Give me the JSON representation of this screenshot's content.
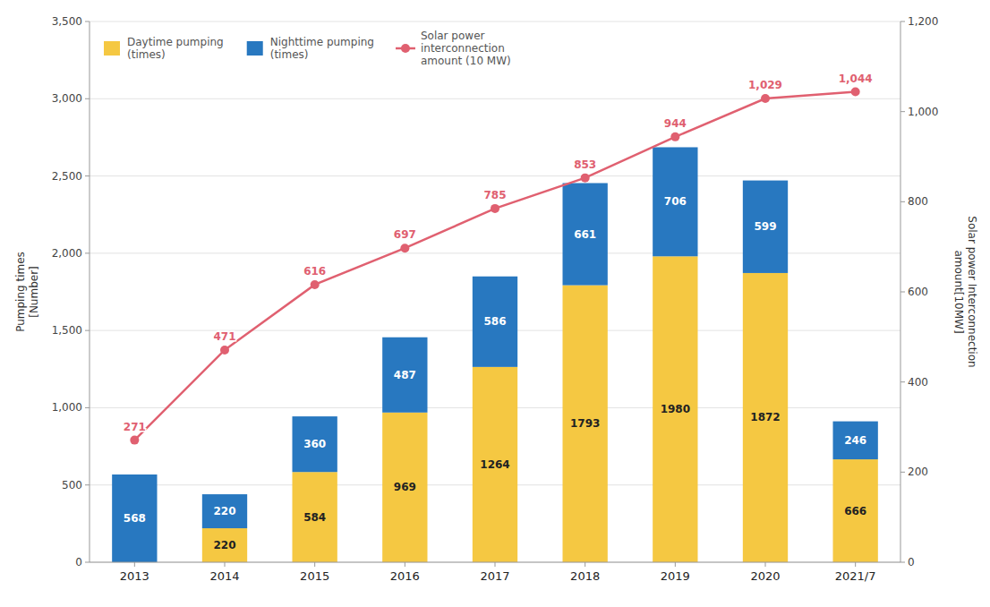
{
  "chart_data": {
    "type": "bar",
    "stacked": true,
    "categories": [
      "2013",
      "2014",
      "2015",
      "2016",
      "2017",
      "2018",
      "2019",
      "2020",
      "2021/7"
    ],
    "series": [
      {
        "name": "Daytime pumping\n(times)",
        "type": "bar",
        "color": "#F5C842",
        "values": [
          0,
          220,
          584,
          969,
          1264,
          1793,
          1980,
          1872,
          666
        ]
      },
      {
        "name": "Nighttime pumping\n(times)",
        "type": "bar",
        "color": "#2878C0",
        "values": [
          568,
          220,
          360,
          487,
          586,
          661,
          706,
          599,
          246
        ]
      },
      {
        "name": "Solar power\ninterconnection\namount  (10 MW)",
        "type": "line",
        "axis": "y2",
        "color": "#E06070",
        "marker": "circle",
        "values": [
          271,
          471,
          616,
          697,
          785,
          853,
          944,
          1029,
          1044
        ],
        "value_labels": [
          "271",
          "471",
          "616",
          "697",
          "785",
          "853",
          "944",
          "1,029",
          "1,044"
        ]
      }
    ],
    "ylabel": "Pumping times\n[Number]",
    "y2label": "Solar power Interconnection\namount[10MW]",
    "ylim": [
      0,
      3500
    ],
    "yticks": [
      0,
      500,
      {
        "value": 1000,
        "label": "1,000"
      },
      {
        "value": 1500,
        "label": "1,500"
      },
      {
        "value": 2000,
        "label": "2,000"
      },
      {
        "value": 2500,
        "label": "2,500"
      },
      {
        "value": 3000,
        "label": "3,000"
      },
      {
        "value": 3500,
        "label": "3,500"
      }
    ],
    "y2lim": [
      0,
      1200
    ],
    "y2ticks": [
      0,
      200,
      400,
      600,
      800,
      {
        "value": 1000,
        "label": "1,000"
      },
      {
        "value": 1200,
        "label": "1,200"
      }
    ],
    "grid": true,
    "legend": "upper left",
    "data_labels": true
  }
}
